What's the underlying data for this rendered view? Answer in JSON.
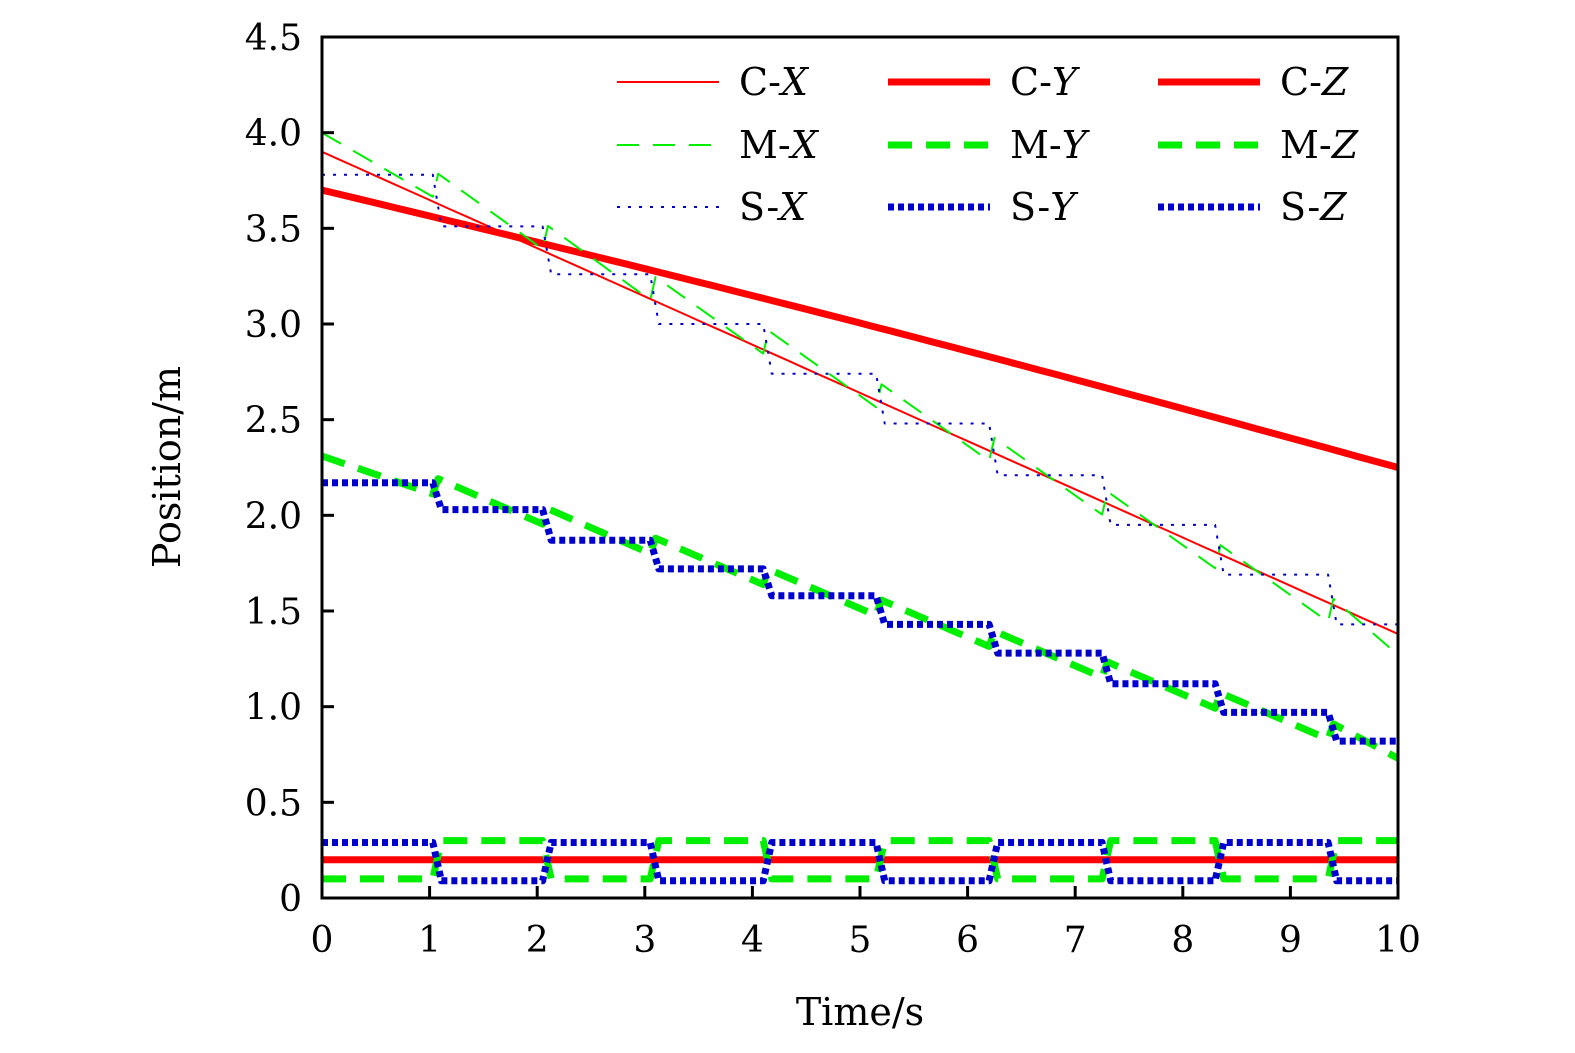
{
  "chart_data": {
    "type": "line",
    "title": "",
    "xlabel": "Time/s",
    "ylabel": "Position/m",
    "xlim": [
      0,
      10
    ],
    "ylim": [
      0,
      4.5
    ],
    "xticks": [
      0,
      1,
      2,
      3,
      4,
      5,
      6,
      7,
      8,
      9,
      10
    ],
    "xtick_labels": [
      "0",
      "1",
      "2",
      "3",
      "4",
      "5",
      "6",
      "7",
      "8",
      "9",
      "10"
    ],
    "yticks": [
      0,
      0.5,
      1.0,
      1.5,
      2.0,
      2.5,
      3.0,
      3.5,
      4.0,
      4.5
    ],
    "ytick_labels": [
      "0",
      "0.5",
      "1.0",
      "1.5",
      "2.0",
      "2.5",
      "3.0",
      "3.5",
      "4.0",
      "4.5"
    ],
    "grid": false,
    "legend_position": "top-right",
    "legend_columns": 3,
    "switch_times": [
      1.03,
      2.05,
      3.05,
      4.1,
      5.15,
      6.2,
      7.25,
      8.3,
      9.35
    ],
    "series": [
      {
        "name": "C-X",
        "prefix": "C-",
        "axis": "X",
        "color": "#ff0000",
        "style": "solid",
        "weight": "thin",
        "kind": "linear",
        "start": 3.9,
        "end": 1.38
      },
      {
        "name": "C-Y",
        "prefix": "C-",
        "axis": "Y",
        "color": "#ff0000",
        "style": "solid",
        "weight": "thick",
        "kind": "linear",
        "start": 3.7,
        "end": 2.25
      },
      {
        "name": "C-Z",
        "prefix": "C-",
        "axis": "Z",
        "color": "#ff0000",
        "style": "solid",
        "weight": "thick",
        "kind": "constant",
        "value": 0.2
      },
      {
        "name": "M-X",
        "prefix": "M-",
        "axis": "X",
        "color": "#00ee00",
        "style": "dashed",
        "weight": "thin",
        "kind": "sawtooth",
        "start": 4.0,
        "end": 1.33,
        "jump": 0.12
      },
      {
        "name": "M-Y",
        "prefix": "M-",
        "axis": "Y",
        "color": "#00ee00",
        "style": "dashed",
        "weight": "thick",
        "kind": "sawtooth",
        "start": 2.31,
        "end": 0.77,
        "jump": 0.08
      },
      {
        "name": "M-Z",
        "prefix": "M-",
        "axis": "Z",
        "color": "#00ee00",
        "style": "dashed",
        "weight": "thick",
        "kind": "alternate",
        "levels": [
          0.1,
          0.3
        ],
        "first_level_index": 0
      },
      {
        "name": "S-X",
        "prefix": "S-",
        "axis": "X",
        "color": "#0000cc",
        "style": "dotted",
        "weight": "thin",
        "kind": "steps",
        "levels": [
          3.78,
          3.51,
          3.26,
          3.0,
          2.74,
          2.48,
          2.21,
          1.95,
          1.69,
          1.43
        ]
      },
      {
        "name": "S-Y",
        "prefix": "S-",
        "axis": "Y",
        "color": "#0000cc",
        "style": "dotted",
        "weight": "thick",
        "kind": "steps",
        "levels": [
          2.17,
          2.03,
          1.87,
          1.72,
          1.58,
          1.43,
          1.28,
          1.12,
          0.97,
          0.82
        ]
      },
      {
        "name": "S-Z",
        "prefix": "S-",
        "axis": "Z",
        "color": "#0000cc",
        "style": "dotted",
        "weight": "thick",
        "kind": "alternate",
        "levels": [
          0.29,
          0.09
        ],
        "first_level_index": 0
      }
    ]
  }
}
